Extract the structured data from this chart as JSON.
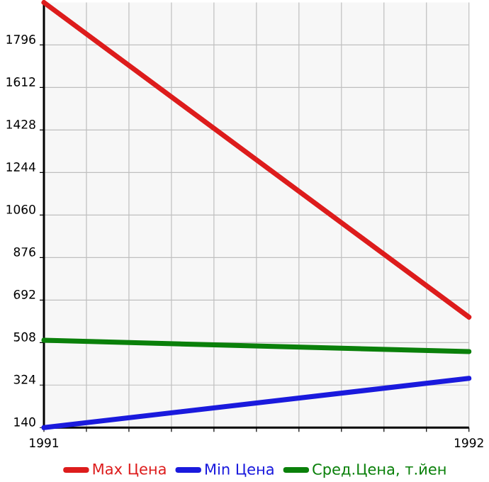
{
  "chart_data": {
    "type": "line",
    "x": [
      1991,
      1992
    ],
    "xlim": [
      1991,
      1992
    ],
    "ylim": [
      140,
      1980
    ],
    "xticks": [
      1991,
      {
        "value": 1991.1,
        "label": null
      },
      {
        "value": 1991.2,
        "label": null
      },
      {
        "value": 1991.3,
        "label": null
      },
      {
        "value": 1991.4,
        "label": null
      },
      {
        "value": 1991.5,
        "label": null
      },
      {
        "value": 1991.6,
        "label": null
      },
      {
        "value": 1991.7,
        "label": null
      },
      {
        "value": 1991.8,
        "label": null
      },
      {
        "value": 1991.9,
        "label": null
      },
      1992
    ],
    "yticks": [
      140,
      324,
      508,
      692,
      876,
      1060,
      1244,
      1428,
      1612,
      1796
    ],
    "grid": true,
    "legend": "bottom",
    "line_style": "solid",
    "series": [
      {
        "name": "Max Цена",
        "color": "#dd1c1c",
        "values": [
          1980,
          618
        ]
      },
      {
        "name": "Min Цена",
        "color": "#1a1add",
        "values": [
          140,
          353
        ]
      },
      {
        "name": "Сред.Цена, т.йен",
        "color": "#0a800a",
        "values": [
          518,
          469
        ]
      }
    ]
  }
}
